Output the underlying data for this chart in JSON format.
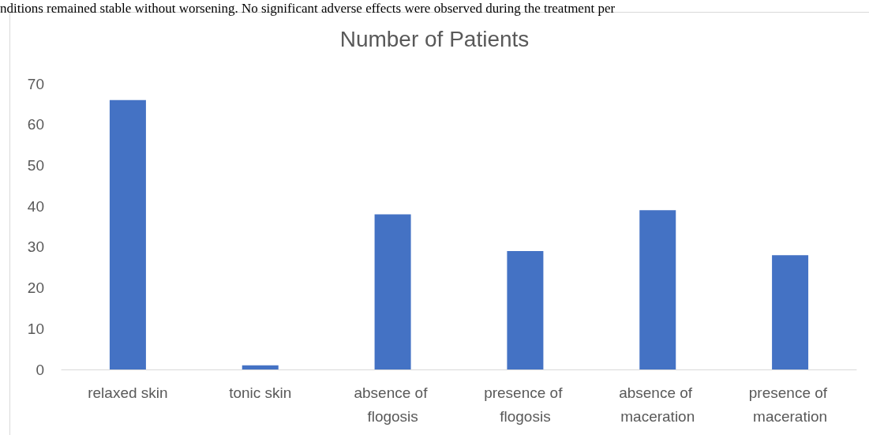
{
  "chart_data": {
    "type": "bar",
    "title": "Number of Patients",
    "annotations": [
      "nditions remained stable without worsening. No significant adverse effects were observed during the treatment per"
    ],
    "categories": [
      "relaxed skin",
      "tonic skin",
      "absence of flogosis",
      "presence of flogosis",
      "absence of maceration",
      "presence of maceration"
    ],
    "values": [
      66,
      1,
      38,
      29,
      39,
      28
    ],
    "color": "#4472c4",
    "ylim": [
      0,
      70
    ],
    "yticks": [
      0,
      10,
      20,
      30,
      40,
      50,
      60,
      70
    ],
    "grid": false
  }
}
